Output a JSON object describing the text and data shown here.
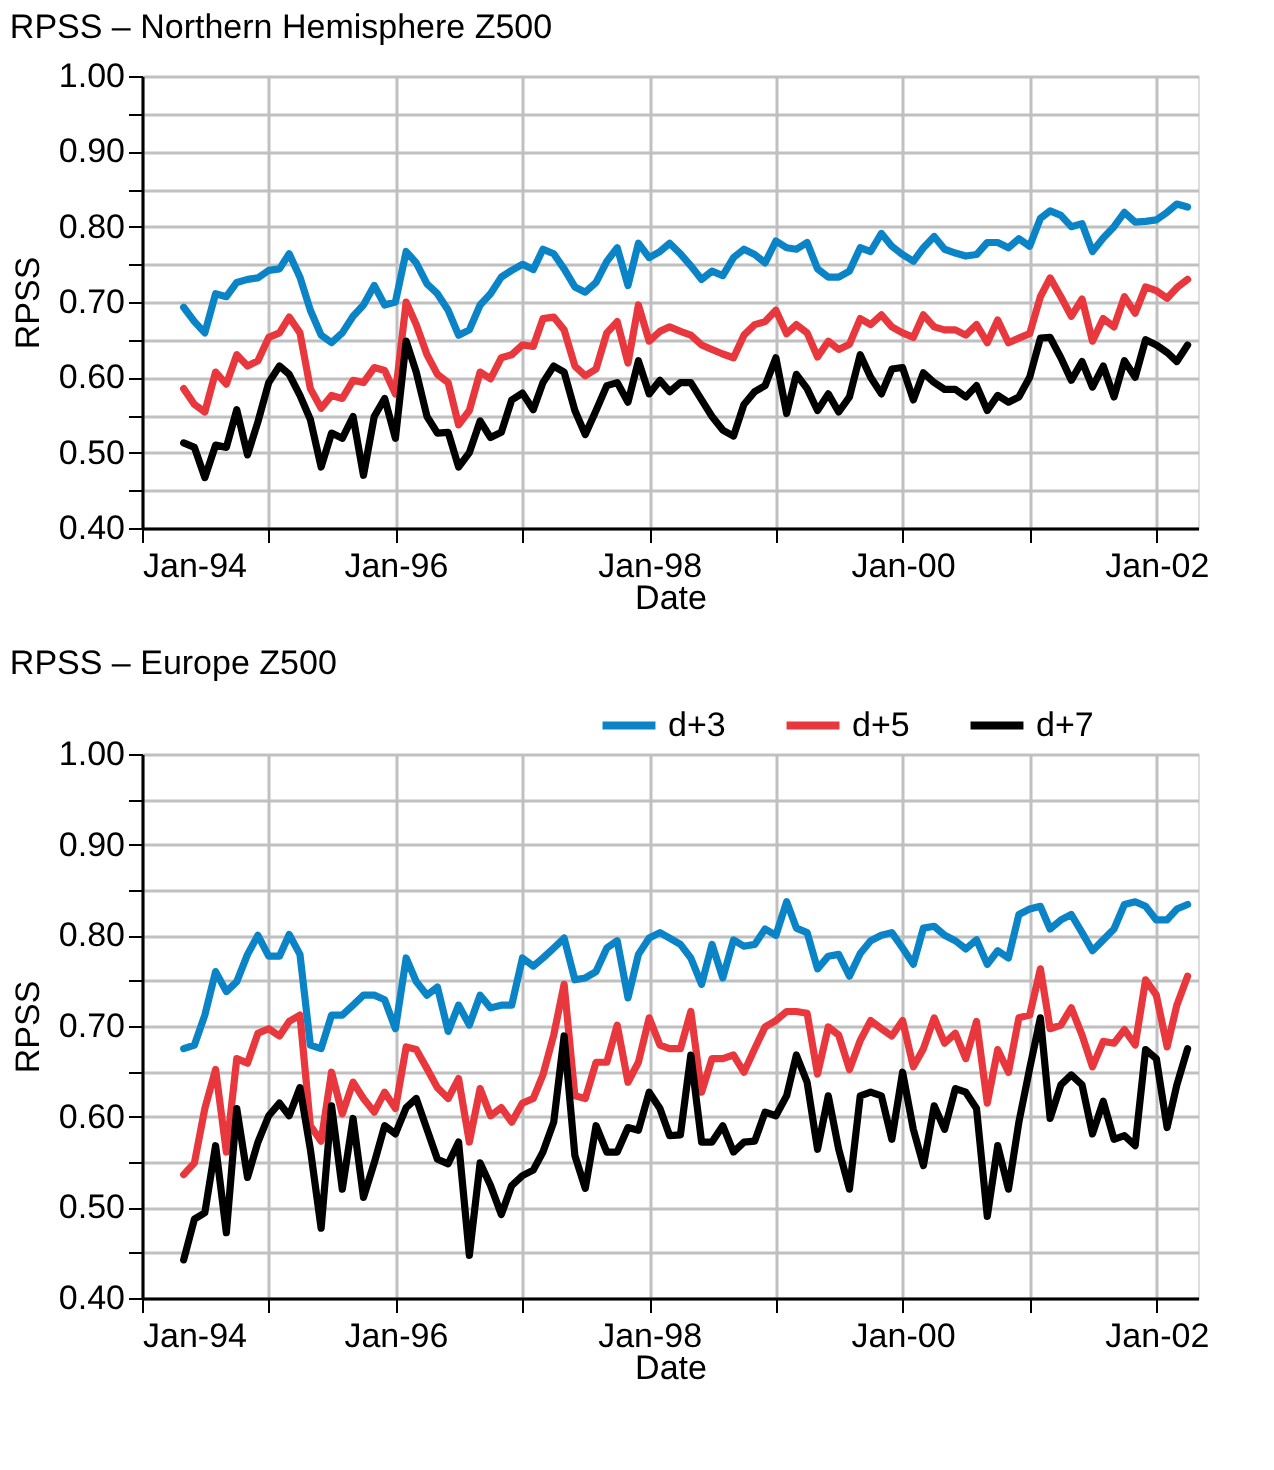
{
  "chart_data": [
    {
      "type": "line",
      "title": "RPSS – Northern Hemisphere Z500",
      "xlabel": "Date",
      "ylabel": "RPSS",
      "grid": true,
      "legend": false,
      "line_style": "solid",
      "x": [
        "1994-05",
        "1994-06",
        "1994-07",
        "1994-08",
        "1994-09",
        "1994-10",
        "1994-11",
        "1994-12",
        "1995-01",
        "1995-02",
        "1995-03",
        "1995-04",
        "1995-05",
        "1995-06",
        "1995-07",
        "1995-08",
        "1995-09",
        "1995-10",
        "1995-11",
        "1995-12",
        "1996-01",
        "1996-02",
        "1996-03",
        "1996-04",
        "1996-05",
        "1996-06",
        "1996-07",
        "1996-08",
        "1996-09",
        "1996-10",
        "1996-11",
        "1996-12",
        "1997-01",
        "1997-02",
        "1997-03",
        "1997-04",
        "1997-05",
        "1997-06",
        "1997-07",
        "1997-08",
        "1997-09",
        "1997-10",
        "1997-11",
        "1997-12",
        "1998-01",
        "1998-02",
        "1998-03",
        "1998-04",
        "1998-05",
        "1998-06",
        "1998-07",
        "1998-08",
        "1998-09",
        "1998-10",
        "1998-11",
        "1998-12",
        "1999-01",
        "1999-02",
        "1999-03",
        "1999-04",
        "1999-05",
        "1999-06",
        "1999-07",
        "1999-08",
        "1999-09",
        "1999-10",
        "1999-11",
        "1999-12",
        "2000-01",
        "2000-02",
        "2000-03",
        "2000-04",
        "2000-05",
        "2000-06",
        "2000-07",
        "2000-08",
        "2000-09",
        "2000-10",
        "2000-11",
        "2000-12",
        "2001-01",
        "2001-02",
        "2001-03",
        "2001-04",
        "2001-05",
        "2001-06",
        "2001-07",
        "2001-08",
        "2001-09",
        "2001-10",
        "2001-11",
        "2001-12",
        "2002-01",
        "2002-02",
        "2002-03",
        "2002-04"
      ],
      "xlim": [
        "1994-01",
        "2002-05"
      ],
      "xticks": [
        {
          "value": "1994-01",
          "label": "Jan-94"
        },
        {
          "value": "1995-01",
          "label": null
        },
        {
          "value": "1996-01",
          "label": "Jan-96"
        },
        {
          "value": "1997-01",
          "label": null
        },
        {
          "value": "1998-01",
          "label": "Jan-98"
        },
        {
          "value": "1999-01",
          "label": null
        },
        {
          "value": "2000-01",
          "label": "Jan-00"
        },
        {
          "value": "2001-01",
          "label": null
        },
        {
          "value": "2002-01",
          "label": "Jan-02"
        }
      ],
      "ylim": [
        0.4,
        1.0
      ],
      "yticks": [
        {
          "value": 0.4,
          "label": "0.40"
        },
        {
          "value": 0.45,
          "label": null
        },
        {
          "value": 0.5,
          "label": "0.50"
        },
        {
          "value": 0.55,
          "label": null
        },
        {
          "value": 0.6,
          "label": "0.60"
        },
        {
          "value": 0.65,
          "label": null
        },
        {
          "value": 0.7,
          "label": "0.70"
        },
        {
          "value": 0.75,
          "label": null
        },
        {
          "value": 0.8,
          "label": "0.80"
        },
        {
          "value": 0.85,
          "label": null
        },
        {
          "value": 0.9,
          "label": "0.90"
        },
        {
          "value": 0.95,
          "label": null
        },
        {
          "value": 1.0,
          "label": "1.00"
        }
      ],
      "series": [
        {
          "color": "#0a84c6",
          "values": [
            0.693,
            0.674,
            0.659,
            0.711,
            0.707,
            0.726,
            0.73,
            0.732,
            0.742,
            0.744,
            0.764,
            0.733,
            0.689,
            0.656,
            0.646,
            0.659,
            0.681,
            0.696,
            0.722,
            0.696,
            0.7,
            0.767,
            0.752,
            0.724,
            0.711,
            0.689,
            0.656,
            0.663,
            0.696,
            0.711,
            0.733,
            0.742,
            0.75,
            0.743,
            0.77,
            0.764,
            0.744,
            0.72,
            0.713,
            0.726,
            0.754,
            0.772,
            0.722,
            0.778,
            0.759,
            0.767,
            0.778,
            0.764,
            0.748,
            0.73,
            0.741,
            0.735,
            0.759,
            0.77,
            0.763,
            0.752,
            0.781,
            0.772,
            0.77,
            0.779,
            0.744,
            0.733,
            0.733,
            0.741,
            0.772,
            0.767,
            0.791,
            0.774,
            0.763,
            0.754,
            0.772,
            0.787,
            0.77,
            0.765,
            0.761,
            0.763,
            0.779,
            0.779,
            0.772,
            0.784,
            0.774,
            0.811,
            0.821,
            0.815,
            0.8,
            0.804,
            0.767,
            0.785,
            0.8,
            0.819,
            0.806,
            0.807,
            0.809,
            0.819,
            0.83,
            0.826
          ]
        },
        {
          "color": "#e8383d",
          "values": [
            0.585,
            0.564,
            0.554,
            0.607,
            0.591,
            0.63,
            0.615,
            0.622,
            0.653,
            0.659,
            0.68,
            0.659,
            0.585,
            0.559,
            0.576,
            0.572,
            0.596,
            0.593,
            0.613,
            0.609,
            0.578,
            0.7,
            0.67,
            0.63,
            0.604,
            0.593,
            0.537,
            0.556,
            0.607,
            0.598,
            0.626,
            0.63,
            0.643,
            0.641,
            0.678,
            0.68,
            0.663,
            0.615,
            0.602,
            0.611,
            0.659,
            0.674,
            0.619,
            0.696,
            0.648,
            0.661,
            0.667,
            0.661,
            0.656,
            0.643,
            0.637,
            0.631,
            0.626,
            0.656,
            0.67,
            0.674,
            0.689,
            0.658,
            0.67,
            0.659,
            0.627,
            0.648,
            0.637,
            0.644,
            0.678,
            0.67,
            0.683,
            0.667,
            0.659,
            0.653,
            0.683,
            0.667,
            0.663,
            0.663,
            0.656,
            0.67,
            0.646,
            0.676,
            0.646,
            0.652,
            0.658,
            0.707,
            0.732,
            0.707,
            0.681,
            0.704,
            0.648,
            0.678,
            0.667,
            0.707,
            0.685,
            0.72,
            0.715,
            0.705,
            0.719,
            0.73
          ]
        },
        {
          "color": "#000000",
          "values": [
            0.513,
            0.507,
            0.467,
            0.51,
            0.507,
            0.557,
            0.497,
            0.541,
            0.593,
            0.615,
            0.604,
            0.576,
            0.544,
            0.481,
            0.526,
            0.519,
            0.548,
            0.47,
            0.548,
            0.572,
            0.519,
            0.648,
            0.607,
            0.548,
            0.526,
            0.527,
            0.481,
            0.5,
            0.542,
            0.52,
            0.527,
            0.57,
            0.579,
            0.557,
            0.593,
            0.615,
            0.607,
            0.556,
            0.524,
            0.556,
            0.589,
            0.593,
            0.567,
            0.622,
            0.578,
            0.596,
            0.581,
            0.593,
            0.593,
            0.57,
            0.548,
            0.53,
            0.522,
            0.564,
            0.581,
            0.589,
            0.626,
            0.552,
            0.604,
            0.585,
            0.556,
            0.578,
            0.554,
            0.574,
            0.63,
            0.6,
            0.578,
            0.611,
            0.613,
            0.57,
            0.606,
            0.593,
            0.584,
            0.584,
            0.574,
            0.589,
            0.556,
            0.576,
            0.567,
            0.574,
            0.6,
            0.652,
            0.653,
            0.626,
            0.596,
            0.621,
            0.587,
            0.615,
            0.574,
            0.622,
            0.6,
            0.65,
            0.643,
            0.633,
            0.621,
            0.643
          ]
        }
      ]
    },
    {
      "type": "line",
      "title": "RPSS – Europe Z500",
      "xlabel": "Date",
      "ylabel": "RPSS",
      "grid": true,
      "legend": "top right",
      "line_style": "solid",
      "x": [
        "1994-05",
        "1994-06",
        "1994-07",
        "1994-08",
        "1994-09",
        "1994-10",
        "1994-11",
        "1994-12",
        "1995-01",
        "1995-02",
        "1995-03",
        "1995-04",
        "1995-05",
        "1995-06",
        "1995-07",
        "1995-08",
        "1995-09",
        "1995-10",
        "1995-11",
        "1995-12",
        "1996-01",
        "1996-02",
        "1996-03",
        "1996-04",
        "1996-05",
        "1996-06",
        "1996-07",
        "1996-08",
        "1996-09",
        "1996-10",
        "1996-11",
        "1996-12",
        "1997-01",
        "1997-02",
        "1997-03",
        "1997-04",
        "1997-05",
        "1997-06",
        "1997-07",
        "1997-08",
        "1997-09",
        "1997-10",
        "1997-11",
        "1997-12",
        "1998-01",
        "1998-02",
        "1998-03",
        "1998-04",
        "1998-05",
        "1998-06",
        "1998-07",
        "1998-08",
        "1998-09",
        "1998-10",
        "1998-11",
        "1998-12",
        "1999-01",
        "1999-02",
        "1999-03",
        "1999-04",
        "1999-05",
        "1999-06",
        "1999-07",
        "1999-08",
        "1999-09",
        "1999-10",
        "1999-11",
        "1999-12",
        "2000-01",
        "2000-02",
        "2000-03",
        "2000-04",
        "2000-05",
        "2000-06",
        "2000-07",
        "2000-08",
        "2000-09",
        "2000-10",
        "2000-11",
        "2000-12",
        "2001-01",
        "2001-02",
        "2001-03",
        "2001-04",
        "2001-05",
        "2001-06",
        "2001-07",
        "2001-08",
        "2001-09",
        "2001-10",
        "2001-11",
        "2001-12",
        "2002-01",
        "2002-02",
        "2002-03",
        "2002-04"
      ],
      "xlim": [
        "1994-01",
        "2002-05"
      ],
      "xticks": [
        {
          "value": "1994-01",
          "label": "Jan-94"
        },
        {
          "value": "1995-01",
          "label": null
        },
        {
          "value": "1996-01",
          "label": "Jan-96"
        },
        {
          "value": "1997-01",
          "label": null
        },
        {
          "value": "1998-01",
          "label": "Jan-98"
        },
        {
          "value": "1999-01",
          "label": null
        },
        {
          "value": "2000-01",
          "label": "Jan-00"
        },
        {
          "value": "2001-01",
          "label": null
        },
        {
          "value": "2002-01",
          "label": "Jan-02"
        }
      ],
      "ylim": [
        0.4,
        1.0
      ],
      "yticks": [
        {
          "value": 0.4,
          "label": "0.40"
        },
        {
          "value": 0.45,
          "label": null
        },
        {
          "value": 0.5,
          "label": "0.50"
        },
        {
          "value": 0.55,
          "label": null
        },
        {
          "value": 0.6,
          "label": "0.60"
        },
        {
          "value": 0.65,
          "label": null
        },
        {
          "value": 0.7,
          "label": "0.70"
        },
        {
          "value": 0.75,
          "label": null
        },
        {
          "value": 0.8,
          "label": "0.80"
        },
        {
          "value": 0.85,
          "label": null
        },
        {
          "value": 0.9,
          "label": "0.90"
        },
        {
          "value": 0.95,
          "label": null
        },
        {
          "value": 1.0,
          "label": "1.00"
        }
      ],
      "series": [
        {
          "name": "d+3",
          "color": "#0a84c6",
          "values": [
            0.675,
            0.679,
            0.712,
            0.76,
            0.738,
            0.749,
            0.779,
            0.8,
            0.777,
            0.777,
            0.801,
            0.779,
            0.679,
            0.675,
            0.712,
            0.712,
            0.723,
            0.734,
            0.734,
            0.729,
            0.697,
            0.775,
            0.749,
            0.734,
            0.743,
            0.694,
            0.723,
            0.701,
            0.734,
            0.72,
            0.723,
            0.723,
            0.775,
            0.766,
            0.775,
            0.786,
            0.797,
            0.751,
            0.753,
            0.76,
            0.786,
            0.794,
            0.731,
            0.779,
            0.797,
            0.803,
            0.797,
            0.79,
            0.775,
            0.746,
            0.79,
            0.753,
            0.795,
            0.788,
            0.79,
            0.807,
            0.8,
            0.837,
            0.808,
            0.803,
            0.763,
            0.777,
            0.779,
            0.755,
            0.78,
            0.794,
            0.8,
            0.803,
            0.786,
            0.768,
            0.808,
            0.81,
            0.8,
            0.794,
            0.785,
            0.795,
            0.768,
            0.783,
            0.775,
            0.823,
            0.829,
            0.832,
            0.807,
            0.817,
            0.823,
            0.803,
            0.783,
            0.795,
            0.807,
            0.834,
            0.837,
            0.832,
            0.817,
            0.817,
            0.829,
            0.834
          ]
        },
        {
          "name": "d+5",
          "color": "#e8383d",
          "values": [
            0.536,
            0.549,
            0.609,
            0.652,
            0.561,
            0.664,
            0.659,
            0.692,
            0.697,
            0.689,
            0.705,
            0.712,
            0.59,
            0.573,
            0.649,
            0.603,
            0.638,
            0.62,
            0.605,
            0.627,
            0.609,
            0.677,
            0.674,
            0.653,
            0.632,
            0.62,
            0.642,
            0.572,
            0.631,
            0.601,
            0.61,
            0.594,
            0.615,
            0.62,
            0.646,
            0.69,
            0.746,
            0.623,
            0.62,
            0.66,
            0.66,
            0.701,
            0.638,
            0.66,
            0.709,
            0.679,
            0.675,
            0.675,
            0.716,
            0.627,
            0.664,
            0.664,
            0.668,
            0.649,
            0.675,
            0.699,
            0.706,
            0.716,
            0.716,
            0.714,
            0.647,
            0.699,
            0.69,
            0.652,
            0.684,
            0.706,
            0.697,
            0.689,
            0.706,
            0.655,
            0.675,
            0.709,
            0.681,
            0.692,
            0.664,
            0.705,
            0.615,
            0.674,
            0.649,
            0.709,
            0.712,
            0.763,
            0.697,
            0.701,
            0.72,
            0.69,
            0.655,
            0.683,
            0.681,
            0.696,
            0.679,
            0.751,
            0.734,
            0.677,
            0.723,
            0.755
          ]
        },
        {
          "name": "d+7",
          "color": "#000000",
          "values": [
            0.442,
            0.487,
            0.494,
            0.568,
            0.472,
            0.609,
            0.533,
            0.572,
            0.601,
            0.615,
            0.601,
            0.632,
            0.564,
            0.477,
            0.612,
            0.52,
            0.598,
            0.511,
            0.549,
            0.59,
            0.581,
            0.61,
            0.62,
            0.586,
            0.553,
            0.548,
            0.572,
            0.447,
            0.549,
            0.524,
            0.492,
            0.524,
            0.535,
            0.541,
            0.561,
            0.594,
            0.689,
            0.557,
            0.521,
            0.59,
            0.561,
            0.561,
            0.588,
            0.585,
            0.627,
            0.609,
            0.579,
            0.58,
            0.668,
            0.572,
            0.572,
            0.59,
            0.561,
            0.572,
            0.573,
            0.605,
            0.601,
            0.623,
            0.668,
            0.638,
            0.564,
            0.623,
            0.564,
            0.52,
            0.623,
            0.627,
            0.623,
            0.575,
            0.649,
            0.586,
            0.546,
            0.612,
            0.586,
            0.631,
            0.627,
            0.609,
            0.49,
            0.568,
            0.52,
            0.594,
            0.653,
            0.709,
            0.598,
            0.635,
            0.646,
            0.635,
            0.581,
            0.617,
            0.575,
            0.579,
            0.568,
            0.674,
            0.664,
            0.588,
            0.635,
            0.675
          ]
        }
      ]
    }
  ]
}
